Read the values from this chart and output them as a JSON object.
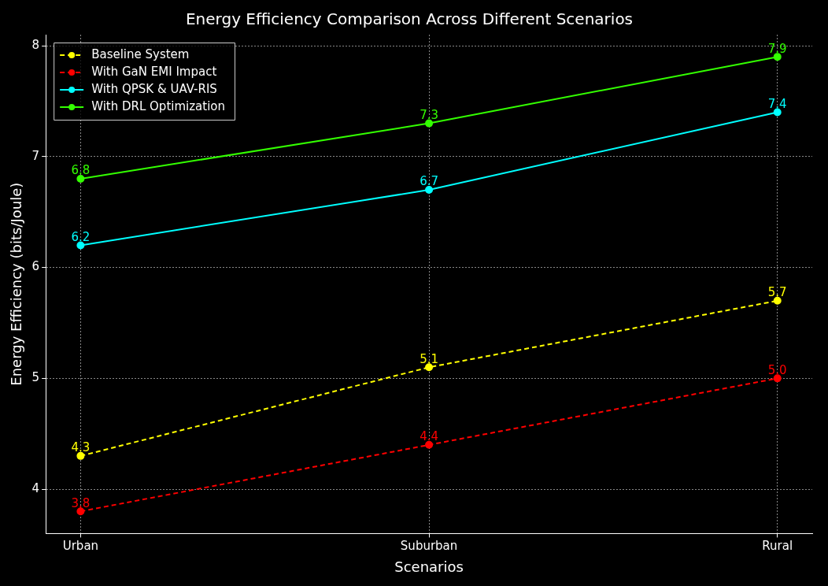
{
  "chart_data": {
    "type": "line",
    "title": "Energy Efficiency Comparison Across Different Scenarios",
    "xlabel": "Scenarios",
    "ylabel": "Energy Efficiency (bits/Joule)",
    "categories": [
      "Urban",
      "Suburban",
      "Rural"
    ],
    "series": [
      {
        "name": "Baseline System",
        "color": "#ffff00",
        "values": [
          4.3,
          5.1,
          5.7
        ],
        "line_style": "dashed"
      },
      {
        "name": "With GaN EMI Impact",
        "color": "#ff0000",
        "values": [
          3.8,
          4.4,
          5.0
        ],
        "value_labels": [
          "3.8",
          "4.4",
          "5.0"
        ],
        "line_style": "dashed"
      },
      {
        "name": "With QPSK & UAV-RIS",
        "color": "#00ffff",
        "values": [
          6.2,
          6.7,
          7.4
        ],
        "line_style": "solid"
      },
      {
        "name": "With DRL Optimization",
        "color": "#33ff00",
        "values": [
          6.8,
          7.3,
          7.9
        ],
        "line_style": "solid"
      }
    ],
    "ylim": [
      3.6,
      8.1
    ],
    "yticks": [
      4,
      5,
      6,
      7,
      8
    ],
    "grid": true,
    "legend": "top left",
    "marker": "circle",
    "data_labels": true
  }
}
